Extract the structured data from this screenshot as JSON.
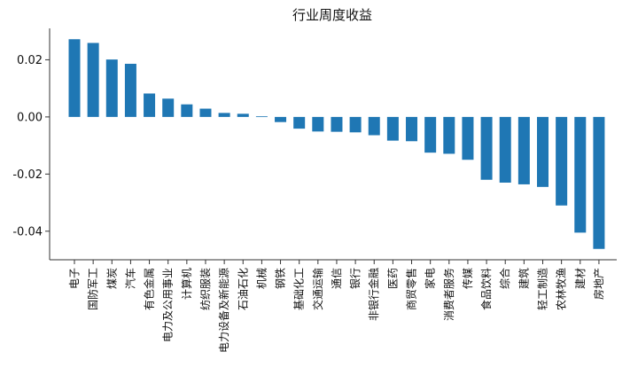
{
  "chart_data": {
    "type": "bar",
    "title": "行业周度收益",
    "xlabel": "",
    "ylabel": "",
    "ylim": [
      -0.05,
      0.031
    ],
    "yticks": [
      -0.04,
      -0.02,
      0.0,
      0.02
    ],
    "ytick_labels": [
      "-0.04",
      "-0.02",
      "0.00",
      "0.02"
    ],
    "grid": false,
    "bar_color": "#1f77b4",
    "categories": [
      "电子",
      "国防军工",
      "煤炭",
      "汽车",
      "有色金属",
      "电力及公用事业",
      "计算机",
      "纺织服装",
      "电力设备及新能源",
      "石油石化",
      "机械",
      "钢铁",
      "基础化工",
      "交通运输",
      "通信",
      "银行",
      "非银行金融",
      "医药",
      "商贸零售",
      "家电",
      "消费者服务",
      "传媒",
      "食品饮料",
      "综合",
      "建筑",
      "轻工制造",
      "农林牧渔",
      "建材",
      "房地产"
    ],
    "values": [
      0.0272,
      0.0259,
      0.0201,
      0.0186,
      0.0082,
      0.0064,
      0.0044,
      0.0029,
      0.0014,
      0.0011,
      0.0002,
      -0.0018,
      -0.0041,
      -0.0051,
      -0.0052,
      -0.0054,
      -0.0064,
      -0.0083,
      -0.0085,
      -0.0125,
      -0.0129,
      -0.015,
      -0.022,
      -0.023,
      -0.0236,
      -0.0245,
      -0.031,
      -0.0405,
      -0.0462
    ]
  }
}
